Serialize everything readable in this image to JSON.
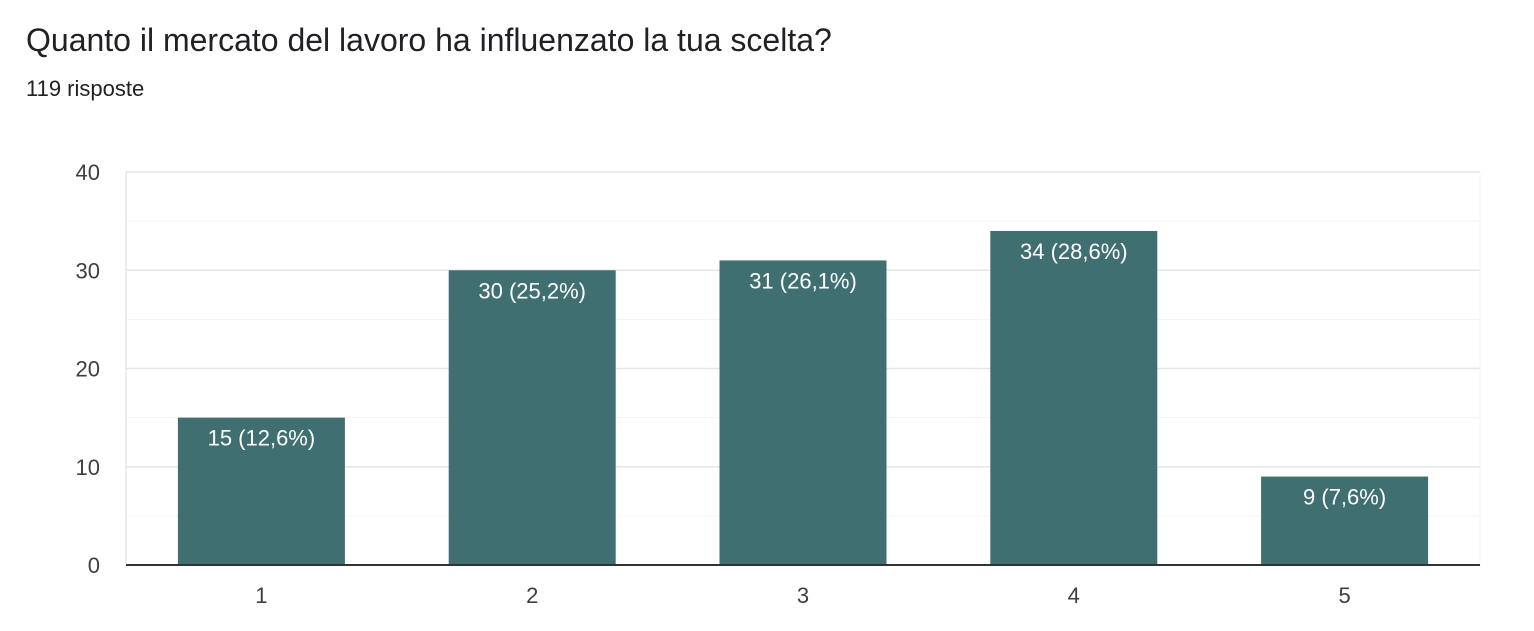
{
  "header": {
    "title": "Quanto il mercato del lavoro ha influenzato la tua scelta?",
    "responses": "119 risposte"
  },
  "colors": {
    "bar": "#3f6f70",
    "grid_major": "#e6e6e6",
    "grid_minor": "#f3f3f3",
    "axis": "#333333"
  },
  "chart_data": {
    "type": "bar",
    "title": "Quanto il mercato del lavoro ha influenzato la tua scelta?",
    "categories": [
      "1",
      "2",
      "3",
      "4",
      "5"
    ],
    "values": [
      15,
      30,
      31,
      34,
      9
    ],
    "data_labels": [
      "15 (12,6%)",
      "30 (25,2%)",
      "31 (26,1%)",
      "34 (28,6%)",
      "9 (7,6%)"
    ],
    "y_ticks": [
      "0",
      "10",
      "20",
      "30",
      "40"
    ],
    "ylim": [
      0,
      40
    ],
    "grid": true,
    "legend": "none"
  }
}
